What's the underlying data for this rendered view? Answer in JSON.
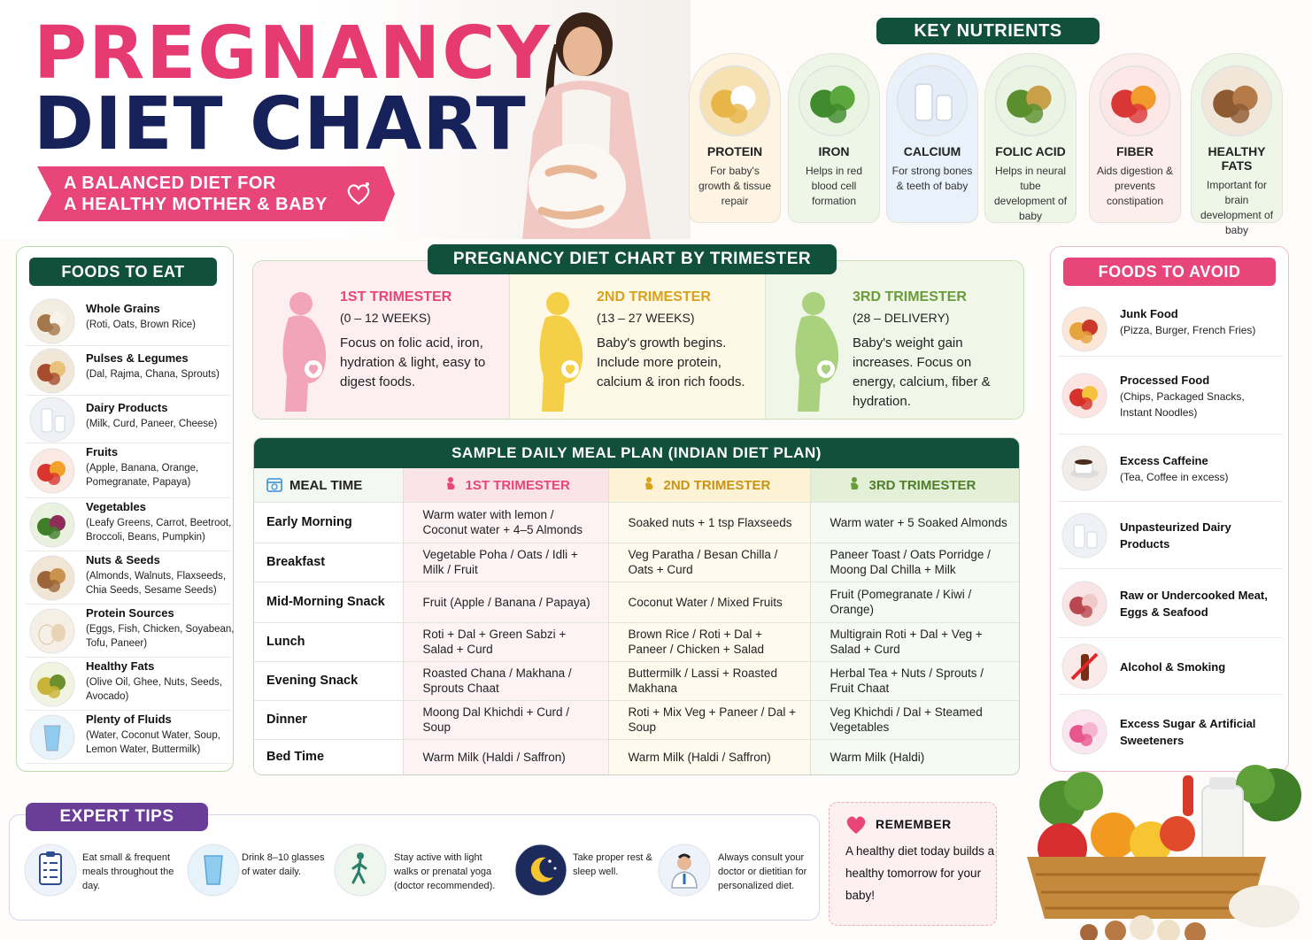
{
  "header": {
    "title_line1": "PREGNANCY",
    "title_line2": "DIET CHART",
    "subtitle_line1": "A BALANCED DIET FOR",
    "subtitle_line2": "A HEALTHY MOTHER & BABY"
  },
  "key_nutrients": {
    "title": "KEY NUTRIENTS",
    "items": [
      {
        "name": "PROTEIN",
        "desc": "For baby's growth & tissue repair",
        "icon": "protein-foods-icon",
        "color": "#fdf4e3"
      },
      {
        "name": "IRON",
        "desc": "Helps in red blood cell formation",
        "icon": "leafy-greens-icon",
        "color": "#eef6e8"
      },
      {
        "name": "CALCIUM",
        "desc": "For strong bones & teeth of baby",
        "icon": "milk-icon",
        "color": "#e9f2fb"
      },
      {
        "name": "FOLIC ACID",
        "desc": "Helps in neural tube development of baby",
        "icon": "avocado-greens-icon",
        "color": "#eef6e8"
      },
      {
        "name": "FIBER",
        "desc": "Aids digestion & prevents constipation",
        "icon": "fruits-icon",
        "color": "#fdeeee"
      },
      {
        "name": "HEALTHY FATS",
        "desc": "Important for brain development of baby",
        "icon": "nuts-icon",
        "color": "#eef6e8"
      }
    ]
  },
  "foods_to_eat": {
    "title": "FOODS TO EAT",
    "items": [
      {
        "name": "Whole Grains",
        "desc": "(Roti, Oats, Brown Rice)",
        "icon": "grains-bowl-icon"
      },
      {
        "name": "Pulses & Legumes",
        "desc": "(Dal, Rajma, Chana, Sprouts)",
        "icon": "pulses-icon"
      },
      {
        "name": "Dairy Products",
        "desc": "(Milk, Curd, Paneer, Cheese)",
        "icon": "dairy-icon"
      },
      {
        "name": "Fruits",
        "desc": "(Apple, Banana, Orange, Pomegranate, Papaya)",
        "icon": "fruit-basket-icon"
      },
      {
        "name": "Vegetables",
        "desc": "(Leafy Greens, Carrot, Beetroot, Broccoli, Beans, Pumpkin)",
        "icon": "vegetables-icon"
      },
      {
        "name": "Nuts & Seeds",
        "desc": "(Almonds, Walnuts, Flaxseeds, Chia Seeds, Sesame Seeds)",
        "icon": "nuts-seeds-icon"
      },
      {
        "name": "Protein Sources",
        "desc": "(Eggs, Fish, Chicken, Soyabean, Tofu, Paneer)",
        "icon": "eggs-icon"
      },
      {
        "name": "Healthy Fats",
        "desc": "(Olive Oil, Ghee, Nuts, Seeds, Avocado)",
        "icon": "olive-oil-icon"
      },
      {
        "name": "Plenty of Fluids",
        "desc": "(Water, Coconut Water, Soup, Lemon Water, Buttermilk)",
        "icon": "water-glass-icon"
      }
    ]
  },
  "trimester": {
    "title": "PREGNANCY DIET CHART BY TRIMESTER",
    "items": [
      {
        "name": "1ST TRIMESTER",
        "weeks": "(0 – 12 WEEKS)",
        "desc": "Focus on folic acid, iron, hydration & light, easy to digest foods.",
        "color": "#e8457a",
        "bg": "#fdeef1",
        "sil": "#f2a5b8"
      },
      {
        "name": "2ND TRIMESTER",
        "weeks": "(13 – 27 WEEKS)",
        "desc": "Baby's growth begins. Include more protein, calcium & iron rich foods.",
        "color": "#d9a21b",
        "bg": "#fef8e7",
        "sil": "#f5cf48"
      },
      {
        "name": "3RD TRIMESTER",
        "weeks": "(28 – DELIVERY)",
        "desc": "Baby's weight gain increases. Focus on energy, calcium, fiber & hydration.",
        "color": "#6b9c3a",
        "bg": "#f0f7e9",
        "sil": "#a9d17e"
      }
    ]
  },
  "meal_plan": {
    "title": "SAMPLE DAILY MEAL PLAN (INDIAN DIET PLAN)",
    "headers": [
      "MEAL TIME",
      "1ST TRIMESTER",
      "2ND TRIMESTER",
      "3RD TRIMESTER"
    ],
    "rows": [
      {
        "meal": "Early Morning",
        "t1": "Warm water with lemon / Coconut water + 4–5 Almonds",
        "t2": "Soaked nuts + 1 tsp Flaxseeds",
        "t3": "Warm water + 5 Soaked Almonds"
      },
      {
        "meal": "Breakfast",
        "t1": "Vegetable Poha / Oats / Idli + Milk / Fruit",
        "t2": "Veg Paratha / Besan Chilla / Oats + Curd",
        "t3": "Paneer Toast / Oats Porridge / Moong Dal Chilla + Milk"
      },
      {
        "meal": "Mid-Morning Snack",
        "t1": "Fruit (Apple / Banana / Papaya)",
        "t2": "Coconut Water / Mixed Fruits",
        "t3": "Fruit (Pomegranate / Kiwi / Orange)"
      },
      {
        "meal": "Lunch",
        "t1": "Roti + Dal + Green Sabzi + Salad + Curd",
        "t2": "Brown Rice / Roti + Dal + Paneer / Chicken + Salad",
        "t3": "Multigrain Roti + Dal + Veg + Salad + Curd"
      },
      {
        "meal": "Evening Snack",
        "t1": "Roasted Chana / Makhana / Sprouts Chaat",
        "t2": "Buttermilk / Lassi + Roasted Makhana",
        "t3": "Herbal Tea + Nuts / Sprouts / Fruit Chaat"
      },
      {
        "meal": "Dinner",
        "t1": "Moong Dal Khichdi + Curd / Soup",
        "t2": "Roti + Mix Veg + Paneer / Dal + Soup",
        "t3": "Veg Khichdi / Dal + Steamed Vegetables"
      },
      {
        "meal": "Bed Time",
        "t1": "Warm Milk (Haldi / Saffron)",
        "t2": "Warm Milk (Haldi / Saffron)",
        "t3": "Warm Milk (Haldi)"
      }
    ]
  },
  "foods_to_avoid": {
    "title": "FOODS TO AVOID",
    "items": [
      {
        "name": "Junk Food",
        "desc": "(Pizza, Burger, French Fries)",
        "icon": "pizza-icon"
      },
      {
        "name": "Processed Food",
        "desc": "(Chips, Packaged Snacks, Instant Noodles)",
        "icon": "chips-icon"
      },
      {
        "name": "Excess Caffeine",
        "desc": "(Tea, Coffee in excess)",
        "icon": "coffee-cup-icon"
      },
      {
        "name": "Unpasteurized Dairy Products",
        "desc": "",
        "icon": "milk-bottle-icon"
      },
      {
        "name": "Raw or Undercooked Meat, Eggs & Seafood",
        "desc": "",
        "icon": "raw-meat-icon"
      },
      {
        "name": "Alcohol & Smoking",
        "desc": "",
        "icon": "no-alcohol-icon"
      },
      {
        "name": "Excess Sugar & Artificial Sweeteners",
        "desc": "",
        "icon": "candy-icon"
      }
    ]
  },
  "expert_tips": {
    "title": "EXPERT TIPS",
    "items": [
      {
        "text": "Eat small & frequent meals throughout the day.",
        "icon": "clipboard-checklist-icon"
      },
      {
        "text": "Drink 8–10 glasses of water daily.",
        "icon": "water-glass-icon"
      },
      {
        "text": "Stay active with light walks or prenatal yoga (doctor recommended).",
        "icon": "walking-person-icon"
      },
      {
        "text": "Take proper rest & sleep well.",
        "icon": "moon-stars-icon"
      },
      {
        "text": "Always consult your doctor or dietitian for personalized diet.",
        "icon": "doctor-icon"
      }
    ]
  },
  "remember": {
    "title": "REMEMBER",
    "text": "A healthy diet today builds a healthy tomorrow for your baby!"
  },
  "colors": {
    "brand_pink": "#e63b72",
    "brand_navy": "#17215a",
    "dark_green": "#11503a",
    "purple": "#6a3d98"
  }
}
